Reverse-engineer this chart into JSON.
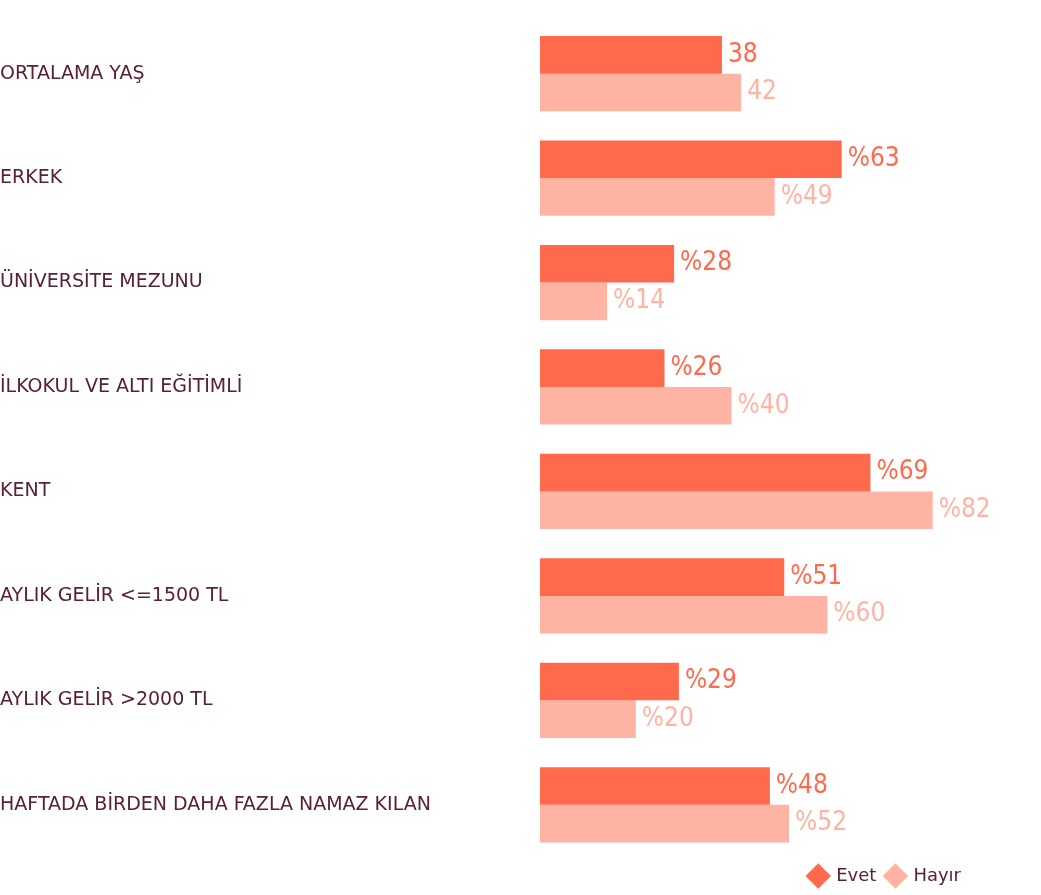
{
  "chart_data": {
    "type": "bar",
    "orientation": "horizontal",
    "categories": [
      "ORTALAMA YAŞ",
      "ERKEK",
      "ÜNİVERSİTE MEZUNU",
      "İLKOKUL VE ALTI EĞİTİMLİ",
      "KENT",
      "AYLIK GELİR <=1500 TL",
      "AYLIK GELİR >2000 TL",
      "HAFTADA BİRDEN DAHA FAZLA NAMAZ KILAN"
    ],
    "series": [
      {
        "name": "Evet",
        "color": "#ff6a4d",
        "values": [
          38,
          63,
          28,
          26,
          69,
          51,
          29,
          48
        ],
        "value_labels": [
          "38",
          "%63",
          "%28",
          "%26",
          "%69",
          "%51",
          "%29",
          "%48"
        ]
      },
      {
        "name": "Hayır",
        "color": "#ffb3a3",
        "values": [
          42,
          49,
          14,
          40,
          82,
          60,
          20,
          52
        ],
        "value_labels": [
          "42",
          "%49",
          "%14",
          "%40",
          "%82",
          "%60",
          "%20",
          "%52"
        ]
      }
    ],
    "legend": "bottom right"
  }
}
